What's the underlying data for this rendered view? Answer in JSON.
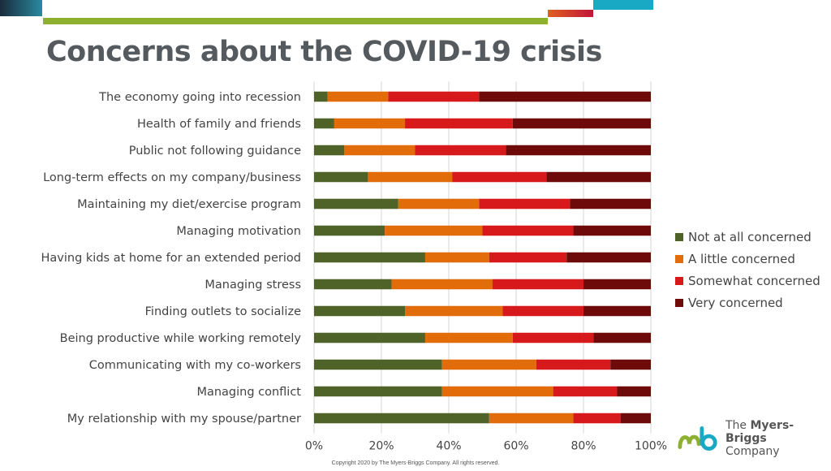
{
  "slide": {
    "title": "Concerns about the COVID-19 crisis",
    "copyright": "Copyright 2020 by The Myers-Briggs Company. All rights reserved.",
    "logo": {
      "line1_prefix": "The ",
      "line1_bold": "Myers-Briggs",
      "line2": "Company"
    }
  },
  "colors": {
    "accent_green": "#8DB030",
    "accent_teal": "#1AA9C4",
    "accent_orange": "#E06020",
    "accent_red": "#C0163A"
  },
  "chart_data": {
    "type": "bar",
    "orientation": "horizontal",
    "stacked": true,
    "percent_stacked": true,
    "title": "",
    "xlabel": "",
    "ylabel": "",
    "xlim": [
      0,
      100
    ],
    "xticks": [
      "0%",
      "20%",
      "40%",
      "60%",
      "80%",
      "100%"
    ],
    "grid": "vertical",
    "legend_position": "right",
    "categories": [
      "The economy going into recession",
      "Health of family and friends",
      "Public not following guidance",
      "Long-term effects on my company/business",
      "Maintaining my diet/exercise program",
      "Managing motivation",
      "Having kids at home for an extended period",
      "Managing stress",
      "Finding outlets to socialize",
      "Being productive while working remotely",
      "Communicating with my co-workers",
      "Managing conflict",
      "My relationship with my spouse/partner"
    ],
    "series": [
      {
        "name": "Not at all concerned",
        "color": "#4F6228",
        "values": [
          4,
          6,
          9,
          16,
          25,
          21,
          33,
          23,
          27,
          33,
          38,
          38,
          52
        ]
      },
      {
        "name": "A little concerned",
        "color": "#E26B0A",
        "values": [
          18,
          21,
          21,
          25,
          24,
          29,
          19,
          30,
          29,
          26,
          28,
          33,
          25
        ]
      },
      {
        "name": "Somewhat concerned",
        "color": "#D7191C",
        "values": [
          27,
          32,
          27,
          28,
          27,
          27,
          23,
          27,
          24,
          24,
          22,
          19,
          14
        ]
      },
      {
        "name": "Very concerned",
        "color": "#6E0A0A",
        "values": [
          51,
          41,
          43,
          31,
          24,
          23,
          25,
          20,
          20,
          17,
          12,
          10,
          9
        ]
      }
    ]
  }
}
